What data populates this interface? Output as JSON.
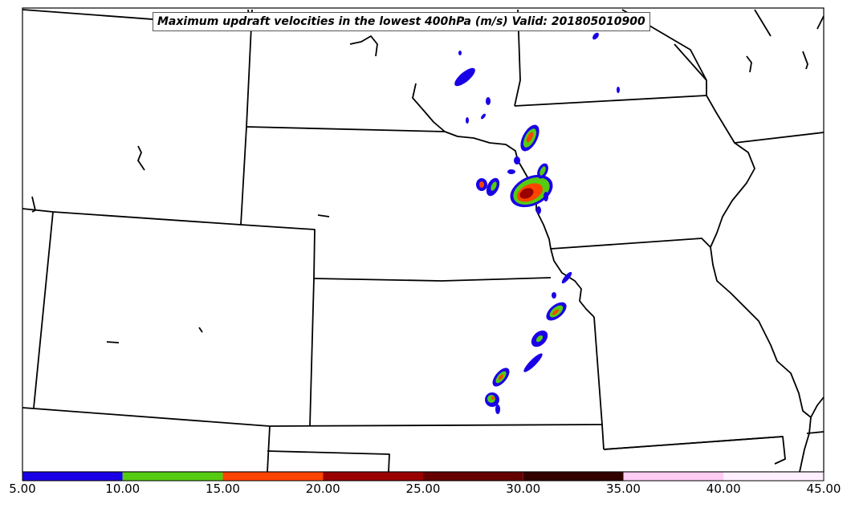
{
  "title": "Maximum updraft velocities in the lowest 400hPa (m/s) Valid: 201805010900",
  "colorbar": {
    "ticks": [
      "5.00",
      "10.00",
      "15.00",
      "20.00",
      "25.00",
      "30.00",
      "35.00",
      "40.00",
      "45.00"
    ],
    "bins": [
      {
        "from": 5,
        "to": 10,
        "color": "#1a00e6"
      },
      {
        "from": 10,
        "to": 15,
        "color": "#55cc11"
      },
      {
        "from": 15,
        "to": 20,
        "color": "#ff4400"
      },
      {
        "from": 20,
        "to": 25,
        "color": "#990000"
      },
      {
        "from": 25,
        "to": 30,
        "color": "#660000"
      },
      {
        "from": 30,
        "to": 35,
        "color": "#330000"
      },
      {
        "from": 35,
        "to": 40,
        "color": "#ffccf4"
      },
      {
        "from": 40,
        "to": 45,
        "color": "#fff0ff"
      }
    ]
  }
}
